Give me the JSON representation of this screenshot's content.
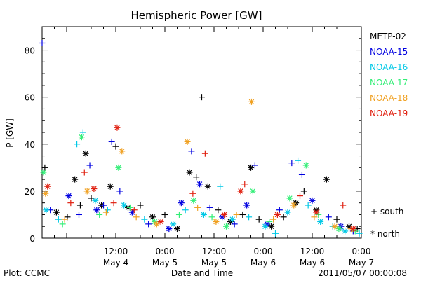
{
  "chart_data": {
    "type": "scatter",
    "title": "Hemispheric Power [GW]",
    "ylabel": "P [GW]",
    "xlabel": "Date and Time",
    "ylim": [
      0,
      90
    ],
    "xlim": [
      "2011-05-03 18:00",
      "2011-05-07 00:00"
    ],
    "grid": false,
    "y_ticks": [
      0,
      20,
      40,
      60,
      80
    ],
    "x_ticks": [
      {
        "time": "2011-05-04 12:00",
        "label1": "12:00",
        "label2": "May 4"
      },
      {
        "time": "2011-05-05 00:00",
        "label1": "0:00",
        "label2": "May 5"
      },
      {
        "time": "2011-05-05 12:00",
        "label1": "12:00",
        "label2": "May 5"
      },
      {
        "time": "2011-05-06 00:00",
        "label1": "0:00",
        "label2": "May 6"
      },
      {
        "time": "2011-05-06 12:00",
        "label1": "12:00",
        "label2": "May 6"
      },
      {
        "time": "2011-05-07 00:00",
        "label1": "0:00",
        "label2": "May 7"
      }
    ],
    "legend_position": "right",
    "marker_key": [
      {
        "marker": "+",
        "label": "south"
      },
      {
        "marker": "*",
        "label": "north"
      }
    ],
    "series": [
      {
        "name": "METP-02",
        "color": "#000000",
        "points": [
          [
            "2011-05-03 18:40",
            30,
            "s"
          ],
          [
            "2011-05-03 21:30",
            11,
            "n"
          ],
          [
            "2011-05-04 00:10",
            9,
            "s"
          ],
          [
            "2011-05-04 02:00",
            25,
            "n"
          ],
          [
            "2011-05-04 03:20",
            14,
            "s"
          ],
          [
            "2011-05-04 04:40",
            36,
            "n"
          ],
          [
            "2011-05-04 06:00",
            17,
            "s"
          ],
          [
            "2011-05-04 08:30",
            14,
            "n"
          ],
          [
            "2011-05-04 10:40",
            22,
            "n"
          ],
          [
            "2011-05-04 12:00",
            39,
            "s"
          ],
          [
            "2011-05-04 15:00",
            13,
            "n"
          ],
          [
            "2011-05-04 18:00",
            14,
            "s"
          ],
          [
            "2011-05-04 21:00",
            9,
            "n"
          ],
          [
            "2011-05-05 00:00",
            10,
            "s"
          ],
          [
            "2011-05-05 03:00",
            4,
            "n"
          ],
          [
            "2011-05-05 06:00",
            28,
            "n"
          ],
          [
            "2011-05-05 07:40",
            26,
            "s"
          ],
          [
            "2011-05-05 09:00",
            60,
            "s"
          ],
          [
            "2011-05-05 10:30",
            22,
            "n"
          ],
          [
            "2011-05-05 13:00",
            12,
            "s"
          ],
          [
            "2011-05-05 16:00",
            7,
            "n"
          ],
          [
            "2011-05-05 19:00",
            10,
            "s"
          ],
          [
            "2011-05-05 21:00",
            30,
            "n"
          ],
          [
            "2011-05-05 23:00",
            8,
            "s"
          ],
          [
            "2011-05-06 02:00",
            5,
            "n"
          ],
          [
            "2011-05-06 05:00",
            9,
            "s"
          ],
          [
            "2011-05-06 08:00",
            15,
            "n"
          ],
          [
            "2011-05-06 10:00",
            20,
            "s"
          ],
          [
            "2011-05-06 13:00",
            12,
            "n"
          ],
          [
            "2011-05-06 15:30",
            25,
            "n"
          ],
          [
            "2011-05-06 18:00",
            8,
            "s"
          ],
          [
            "2011-05-06 21:00",
            5,
            "n"
          ],
          [
            "2011-05-06 23:00",
            4,
            "s"
          ]
        ]
      },
      {
        "name": "NOAA-15",
        "color": "#0000e0",
        "points": [
          [
            "2011-05-03 18:00",
            83,
            "s"
          ],
          [
            "2011-05-03 20:00",
            12,
            "s"
          ],
          [
            "2011-05-04 00:30",
            18,
            "n"
          ],
          [
            "2011-05-04 03:00",
            10,
            "s"
          ],
          [
            "2011-05-04 05:40",
            31,
            "s"
          ],
          [
            "2011-05-04 07:20",
            12,
            "n"
          ],
          [
            "2011-05-04 09:00",
            14,
            "s"
          ],
          [
            "2011-05-04 11:00",
            41,
            "s"
          ],
          [
            "2011-05-04 13:00",
            20,
            "s"
          ],
          [
            "2011-05-04 16:00",
            11,
            "n"
          ],
          [
            "2011-05-04 20:00",
            6,
            "s"
          ],
          [
            "2011-05-05 01:00",
            4,
            "n"
          ],
          [
            "2011-05-05 04:00",
            15,
            "n"
          ],
          [
            "2011-05-05 06:30",
            37,
            "s"
          ],
          [
            "2011-05-05 08:30",
            23,
            "n"
          ],
          [
            "2011-05-05 11:00",
            13,
            "s"
          ],
          [
            "2011-05-05 14:00",
            9,
            "n"
          ],
          [
            "2011-05-05 17:00",
            6,
            "s"
          ],
          [
            "2011-05-05 20:00",
            14,
            "n"
          ],
          [
            "2011-05-05 22:00",
            31,
            "s"
          ],
          [
            "2011-05-06 01:00",
            6,
            "n"
          ],
          [
            "2011-05-06 04:00",
            12,
            "s"
          ],
          [
            "2011-05-06 07:00",
            32,
            "s"
          ],
          [
            "2011-05-06 09:30",
            27,
            "s"
          ],
          [
            "2011-05-06 12:00",
            16,
            "n"
          ],
          [
            "2011-05-06 16:00",
            9,
            "s"
          ],
          [
            "2011-05-06 19:00",
            5,
            "n"
          ],
          [
            "2011-05-06 22:00",
            3,
            "s"
          ]
        ]
      },
      {
        "name": "NOAA-16",
        "color": "#00c8e6",
        "points": [
          [
            "2011-05-03 19:00",
            12,
            "n"
          ],
          [
            "2011-05-03 22:00",
            8,
            "s"
          ],
          [
            "2011-05-04 02:30",
            40,
            "s"
          ],
          [
            "2011-05-04 04:00",
            45,
            "s"
          ],
          [
            "2011-05-04 07:00",
            16,
            "n"
          ],
          [
            "2011-05-04 10:00",
            12,
            "s"
          ],
          [
            "2011-05-04 14:00",
            14,
            "n"
          ],
          [
            "2011-05-04 19:00",
            8,
            "s"
          ],
          [
            "2011-05-05 02:00",
            6,
            "n"
          ],
          [
            "2011-05-05 05:00",
            12,
            "s"
          ],
          [
            "2011-05-05 09:30",
            10,
            "n"
          ],
          [
            "2011-05-05 13:30",
            22,
            "s"
          ],
          [
            "2011-05-05 16:30",
            8,
            "n"
          ],
          [
            "2011-05-05 20:30",
            9,
            "s"
          ],
          [
            "2011-05-06 00:30",
            5,
            "n"
          ],
          [
            "2011-05-06 03:00",
            2,
            "s"
          ],
          [
            "2011-05-06 06:00",
            11,
            "n"
          ],
          [
            "2011-05-06 08:30",
            33,
            "s"
          ],
          [
            "2011-05-06 11:00",
            14,
            "s"
          ],
          [
            "2011-05-06 14:00",
            7,
            "n"
          ],
          [
            "2011-05-06 17:00",
            5,
            "s"
          ],
          [
            "2011-05-06 20:00",
            3,
            "n"
          ],
          [
            "2011-05-06 23:30",
            2,
            "s"
          ]
        ]
      },
      {
        "name": "NOAA-17",
        "color": "#33ee77",
        "points": [
          [
            "2011-05-03 18:20",
            28,
            "n"
          ],
          [
            "2011-05-03 23:00",
            6,
            "s"
          ],
          [
            "2011-05-04 03:40",
            43,
            "n"
          ],
          [
            "2011-05-04 08:00",
            10,
            "s"
          ],
          [
            "2011-05-04 12:40",
            30,
            "n"
          ],
          [
            "2011-05-04 15:30",
            13,
            "s"
          ],
          [
            "2011-05-04 21:30",
            7,
            "n"
          ],
          [
            "2011-05-05 03:30",
            10,
            "s"
          ],
          [
            "2011-05-05 07:00",
            16,
            "n"
          ],
          [
            "2011-05-05 11:30",
            9,
            "s"
          ],
          [
            "2011-05-05 15:00",
            5,
            "n"
          ],
          [
            "2011-05-05 21:30",
            20,
            "n"
          ],
          [
            "2011-05-06 01:30",
            7,
            "s"
          ],
          [
            "2011-05-06 06:30",
            17,
            "n"
          ],
          [
            "2011-05-06 10:30",
            31,
            "n"
          ],
          [
            "2011-05-06 13:30",
            10,
            "s"
          ],
          [
            "2011-05-06 18:30",
            4,
            "n"
          ],
          [
            "2011-05-06 22:30",
            3,
            "s"
          ]
        ]
      },
      {
        "name": "NOAA-18",
        "color": "#f0a020",
        "points": [
          [
            "2011-05-03 18:50",
            19,
            "n"
          ],
          [
            "2011-05-03 23:30",
            8,
            "s"
          ],
          [
            "2011-05-04 05:00",
            20,
            "n"
          ],
          [
            "2011-05-04 09:40",
            11,
            "s"
          ],
          [
            "2011-05-04 13:30",
            37,
            "n"
          ],
          [
            "2011-05-04 17:00",
            9,
            "s"
          ],
          [
            "2011-05-04 22:00",
            6,
            "n"
          ],
          [
            "2011-05-05 05:30",
            41,
            "n"
          ],
          [
            "2011-05-05 08:00",
            13,
            "s"
          ],
          [
            "2011-05-05 12:30",
            7,
            "n"
          ],
          [
            "2011-05-05 17:30",
            10,
            "s"
          ],
          [
            "2011-05-05 21:10",
            58,
            "n"
          ],
          [
            "2011-05-06 02:30",
            8,
            "s"
          ],
          [
            "2011-05-06 07:30",
            14,
            "n"
          ],
          [
            "2011-05-06 12:30",
            9,
            "s"
          ],
          [
            "2011-05-06 17:30",
            5,
            "n"
          ],
          [
            "2011-05-06 21:30",
            4,
            "s"
          ]
        ]
      },
      {
        "name": "NOAA-19",
        "color": "#e02010",
        "points": [
          [
            "2011-05-03 19:20",
            22,
            "n"
          ],
          [
            "2011-05-04 01:00",
            15,
            "s"
          ],
          [
            "2011-05-04 04:20",
            28,
            "s"
          ],
          [
            "2011-05-04 06:40",
            21,
            "n"
          ],
          [
            "2011-05-04 11:30",
            15,
            "s"
          ],
          [
            "2011-05-04 12:20",
            47,
            "n"
          ],
          [
            "2011-05-04 16:30",
            12,
            "s"
          ],
          [
            "2011-05-04 23:00",
            7,
            "n"
          ],
          [
            "2011-05-05 06:50",
            19,
            "s"
          ],
          [
            "2011-05-05 09:50",
            36,
            "s"
          ],
          [
            "2011-05-05 14:30",
            10,
            "n"
          ],
          [
            "2011-05-05 18:30",
            20,
            "n"
          ],
          [
            "2011-05-05 19:30",
            23,
            "s"
          ],
          [
            "2011-05-06 03:30",
            10,
            "n"
          ],
          [
            "2011-05-06 09:00",
            18,
            "s"
          ],
          [
            "2011-05-06 13:00",
            11,
            "n"
          ],
          [
            "2011-05-06 19:30",
            14,
            "s"
          ],
          [
            "2011-05-06 22:00",
            4,
            "n"
          ]
        ]
      }
    ]
  },
  "footer": {
    "left": "Plot: CCMC",
    "right": "2011/05/07 00:00:08"
  }
}
